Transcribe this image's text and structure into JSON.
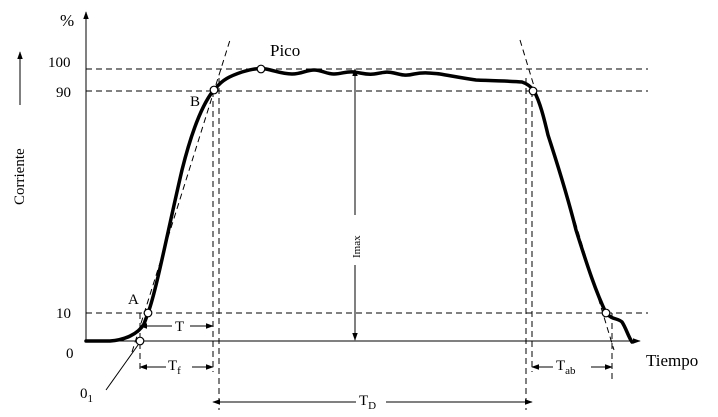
{
  "y_axis": {
    "unit": "%",
    "label": "Corriente",
    "ticks": {
      "t0": "0",
      "t10": "10",
      "t90": "90",
      "t100": "100"
    }
  },
  "x_axis": {
    "label": "Tiempo"
  },
  "points": {
    "peak": "Pico",
    "a": "A",
    "b": "B",
    "origin_main": "0",
    "origin_sub": "1"
  },
  "intervals": {
    "t": {
      "main": "T",
      "sub": ""
    },
    "tf": {
      "main": "T",
      "sub": "f"
    },
    "tab": {
      "main": "T",
      "sub": "ab"
    },
    "td": {
      "main": "T",
      "sub": "D"
    },
    "imax": "Imax"
  }
}
